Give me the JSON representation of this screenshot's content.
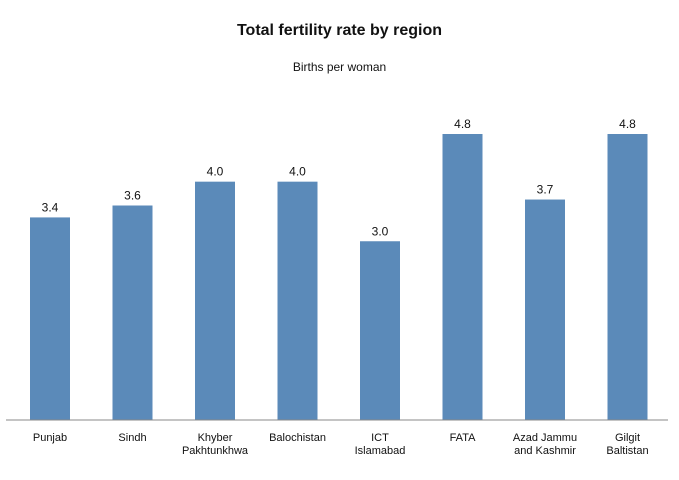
{
  "colors": {
    "bar": "#5b8ab9",
    "axis": "#888888",
    "text": "#111111"
  },
  "chart_data": {
    "type": "bar",
    "title": "Total fertility rate by region",
    "subtitle": "Births per woman",
    "categories": [
      [
        "Punjab"
      ],
      [
        "Sindh"
      ],
      [
        "Khyber",
        "Pakhtunkhwa"
      ],
      [
        "Balochistan"
      ],
      [
        "ICT",
        "Islamabad"
      ],
      [
        "FATA"
      ],
      [
        "Azad Jammu",
        "and Kashmir"
      ],
      [
        "Gilgit",
        "Baltistan"
      ]
    ],
    "values": [
      3.4,
      3.6,
      4.0,
      4.0,
      3.0,
      4.8,
      3.7,
      4.8
    ],
    "value_labels": [
      "3.4",
      "3.6",
      "4.0",
      "4.0",
      "3.0",
      "4.8",
      "3.7",
      "4.8"
    ],
    "ylim": [
      0,
      4.8
    ],
    "grid": false,
    "legend": "none"
  }
}
